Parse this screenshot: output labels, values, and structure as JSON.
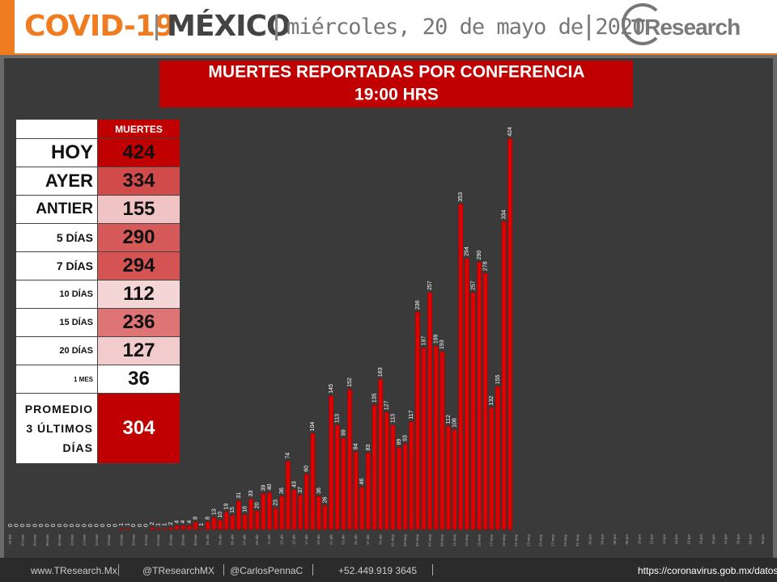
{
  "header": {
    "title": "COVID-19",
    "country": "MÉXICO",
    "date": "miércoles, 20 de mayo de 2020",
    "logo": "TResearch"
  },
  "chart_data": {
    "type": "bar",
    "title": "MUERTES REPORTADAS POR CONFERENCIA",
    "subtitle": "19:00 HRS",
    "color": "#e00000",
    "ylim": [
      0,
      500
    ],
    "categories": [
      "29-feb",
      null,
      "02-mar",
      null,
      "04-mar",
      null,
      "06-mar",
      null,
      "08-mar",
      null,
      "10-mar",
      null,
      "12-mar",
      null,
      "14-mar",
      null,
      "16-mar",
      null,
      "18-mar",
      null,
      "20-mar",
      null,
      "22-mar",
      null,
      "24-mar",
      null,
      "26-mar",
      null,
      "28-mar",
      null,
      "30-mar",
      null,
      "01-abr",
      null,
      "03-abr",
      null,
      "05-abr",
      null,
      "07-abr",
      null,
      "09-abr",
      null,
      "11-abr",
      null,
      "13-abr",
      null,
      "15-abr",
      null,
      "17-abr",
      null,
      "19-abr",
      null,
      "21-abr",
      null,
      "23-abr",
      null,
      "25-abr",
      null,
      "27-abr",
      null,
      "29-abr",
      null,
      "01-may",
      null,
      "03-may",
      null,
      "05-may",
      null,
      "07-may",
      null,
      "09-may",
      null,
      "11-may",
      null,
      "13-may",
      null,
      "15-may",
      null,
      "17-may",
      null,
      "19-may",
      null,
      "21-may",
      null,
      "23-may",
      null,
      "25-may",
      null,
      "27-may",
      null,
      "29-may",
      null,
      "31-may",
      null,
      "02-jun",
      null,
      "04-jun",
      null,
      "06-jun",
      null,
      "08-jun",
      null,
      "10-jun",
      null,
      "12-jun",
      null,
      "14-jun",
      null,
      "16-jun",
      null,
      "18-jun",
      null,
      "20-jun",
      null,
      "22-jun",
      null,
      "24-jun",
      null,
      "26-jun",
      null,
      "28-jun",
      null,
      "30-jun"
    ],
    "values": [
      0,
      0,
      0,
      0,
      0,
      0,
      0,
      0,
      0,
      0,
      0,
      0,
      0,
      0,
      0,
      0,
      0,
      0,
      1,
      1,
      0,
      0,
      0,
      2,
      1,
      1,
      2,
      4,
      4,
      4,
      8,
      1,
      8,
      13,
      10,
      19,
      15,
      31,
      16,
      33,
      20,
      39,
      40,
      23,
      36,
      74,
      43,
      37,
      60,
      104,
      36,
      26,
      145,
      113,
      99,
      152,
      84,
      46,
      83,
      135,
      163,
      127,
      113,
      89,
      93,
      117,
      236,
      197,
      257,
      199,
      193,
      112,
      108,
      353,
      294,
      257,
      290,
      278,
      132,
      155,
      334,
      424,
      null,
      null,
      null,
      null,
      null,
      null,
      null,
      null,
      null,
      null,
      null,
      null,
      null,
      null,
      null,
      null,
      null,
      null,
      null,
      null,
      null,
      null,
      null,
      null,
      null,
      null,
      null,
      null,
      null,
      null,
      null,
      null,
      null,
      null,
      null,
      null,
      null,
      null,
      null,
      null,
      null
    ]
  },
  "table": {
    "header": "MUERTES",
    "rows": [
      {
        "label": "HOY",
        "value": 424,
        "color": "#c00000"
      },
      {
        "label": "AYER",
        "value": 334,
        "color": "#d24b4b"
      },
      {
        "label": "ANTIER",
        "value": 155,
        "color": "#f0c4c4"
      },
      {
        "label": "5 DÍAS",
        "value": 290,
        "color": "#d65a5a"
      },
      {
        "label": "7 DÍAS",
        "value": 294,
        "color": "#d45454"
      },
      {
        "label": "10 DÍAS",
        "value": 112,
        "color": "#f5d6d6"
      },
      {
        "label": "15 DÍAS",
        "value": 236,
        "color": "#de7474"
      },
      {
        "label": "20 DÍAS",
        "value": 127,
        "color": "#f2cccc"
      },
      {
        "label": "1 MES",
        "value": 36,
        "color": "#ffffff"
      },
      {
        "label": "PROMEDIO 3 ÚLTIMOS DÍAS",
        "value": 304,
        "color": "#c00000"
      }
    ]
  },
  "footer": {
    "website": "www.TResearch.Mx",
    "twitter": "@TResearchMX",
    "handle": "@CarlosPennaC",
    "phone": "+52.449.919 3645",
    "source": "https://coronavirus.gob.mx/datos/"
  }
}
